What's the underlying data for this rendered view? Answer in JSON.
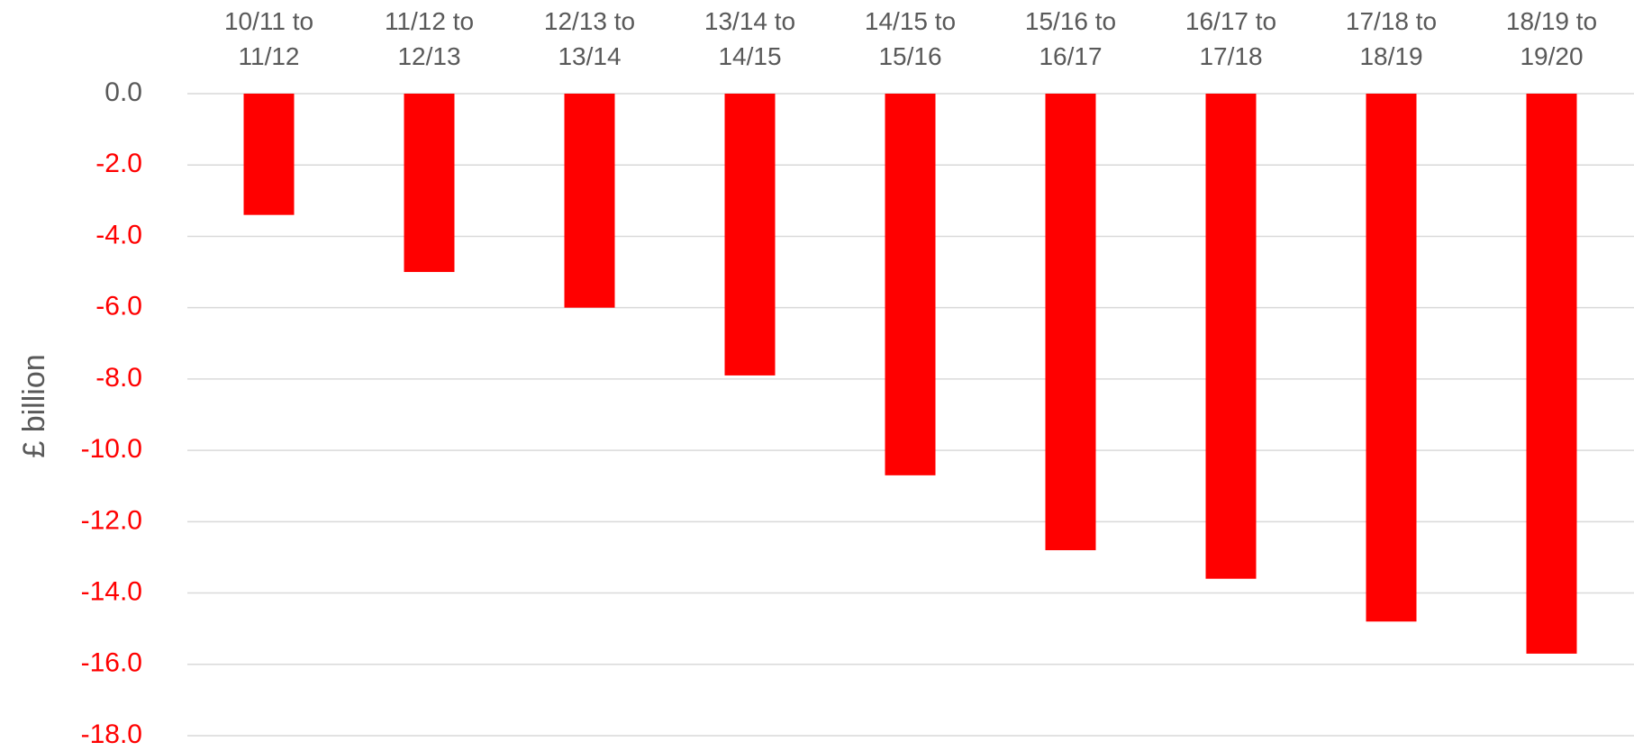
{
  "chart_data": {
    "type": "bar",
    "y_label": "£ billion",
    "categories": [
      "10/11 to 11/12",
      "11/12 to 12/13",
      "12/13 to 13/14",
      "13/14 to 14/15",
      "14/15 to 15/16",
      "15/16 to 16/17",
      "16/17 to 17/18",
      "17/18 to 18/19",
      "18/19 to 19/20"
    ],
    "values": [
      -3.4,
      -5.0,
      -6.0,
      -7.9,
      -10.7,
      -12.8,
      -13.6,
      -14.8,
      -15.7
    ],
    "color": "#ff0000",
    "ylim": [
      -18,
      0
    ],
    "yticks": [
      {
        "value": 0,
        "label": "0.0"
      },
      {
        "value": -2,
        "label": "-2.0"
      },
      {
        "value": -4,
        "label": "-4.0"
      },
      {
        "value": -6,
        "label": "-6.0"
      },
      {
        "value": -8,
        "label": "-8.0"
      },
      {
        "value": -10,
        "label": "-10.0"
      },
      {
        "value": -12,
        "label": "-12.0"
      },
      {
        "value": -14,
        "label": "-14.0"
      },
      {
        "value": -16,
        "label": "-16.0"
      },
      {
        "value": -18,
        "label": "-18.0"
      }
    ],
    "tick_color": "#595959",
    "negative_tick_color": "#ff0000",
    "grid": true
  }
}
